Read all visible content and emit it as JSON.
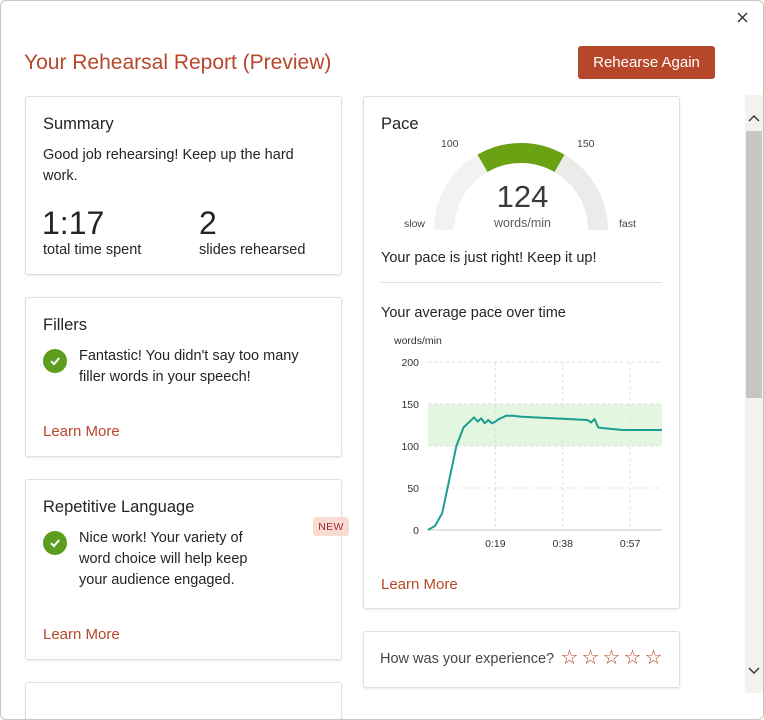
{
  "dialog": {
    "title": "Your Rehearsal Report (Preview)",
    "close_label": "✕",
    "rehearse_button": "Rehearse Again"
  },
  "summary": {
    "title": "Summary",
    "message_line1": "Good job rehearsing! Keep up the hard",
    "message_line2": "work.",
    "time_value": "1:17",
    "time_label": "total time spent",
    "slides_value": "2",
    "slides_label": "slides rehearsed"
  },
  "fillers": {
    "title": "Fillers",
    "message_line1": "Fantastic! You didn't say too many",
    "message_line2": "filler words in your speech!",
    "learn_more": "Learn More"
  },
  "repetitive": {
    "title": "Repetitive Language",
    "badge": "NEW",
    "message_line1": "Nice work! Your variety of",
    "message_line2": "word choice will help keep",
    "message_line3": "your audience engaged.",
    "learn_more": "Learn More"
  },
  "pace": {
    "title": "Pace",
    "gauge": {
      "value": 124,
      "unit": "words/min",
      "label_100": "100",
      "label_150": "150",
      "label_slow": "slow",
      "label_fast": "fast",
      "green_range": [
        100,
        150
      ],
      "colors": {
        "fill": "#6aa213",
        "track": "#edebe9"
      }
    },
    "message": "Your pace is just right! Keep it up!",
    "chart_title": "Your average pace over time",
    "learn_more": "Learn More"
  },
  "chart_data": {
    "type": "line",
    "ylabel": "words/min",
    "ylim": [
      0,
      200
    ],
    "yticks": [
      "200",
      "150",
      "100",
      "50",
      "0"
    ],
    "xticks": [
      "0:19",
      "0:38",
      "0:57"
    ],
    "band": [
      100,
      150
    ],
    "colors": {
      "line": "#1a9e8f",
      "band": "#e3f6e0"
    },
    "series": [
      {
        "x": [
          0,
          2,
          4,
          6,
          8,
          10,
          12,
          13,
          14,
          15,
          16,
          17,
          18,
          19,
          20,
          22,
          24,
          26,
          30,
          35,
          40,
          45,
          46,
          47,
          48,
          50,
          55,
          60,
          65,
          66
        ],
        "values": [
          0,
          5,
          20,
          60,
          100,
          122,
          130,
          134,
          129,
          133,
          127,
          131,
          127,
          129,
          132,
          136,
          136,
          135,
          134,
          133,
          132,
          131,
          128,
          132,
          122,
          121,
          119,
          119,
          119,
          119
        ]
      }
    ]
  },
  "rating": {
    "question": "How was your experience?",
    "stars": [
      "☆",
      "☆",
      "☆",
      "☆",
      "☆"
    ]
  },
  "scroll": {
    "up": "⌃",
    "down": "⌄"
  }
}
